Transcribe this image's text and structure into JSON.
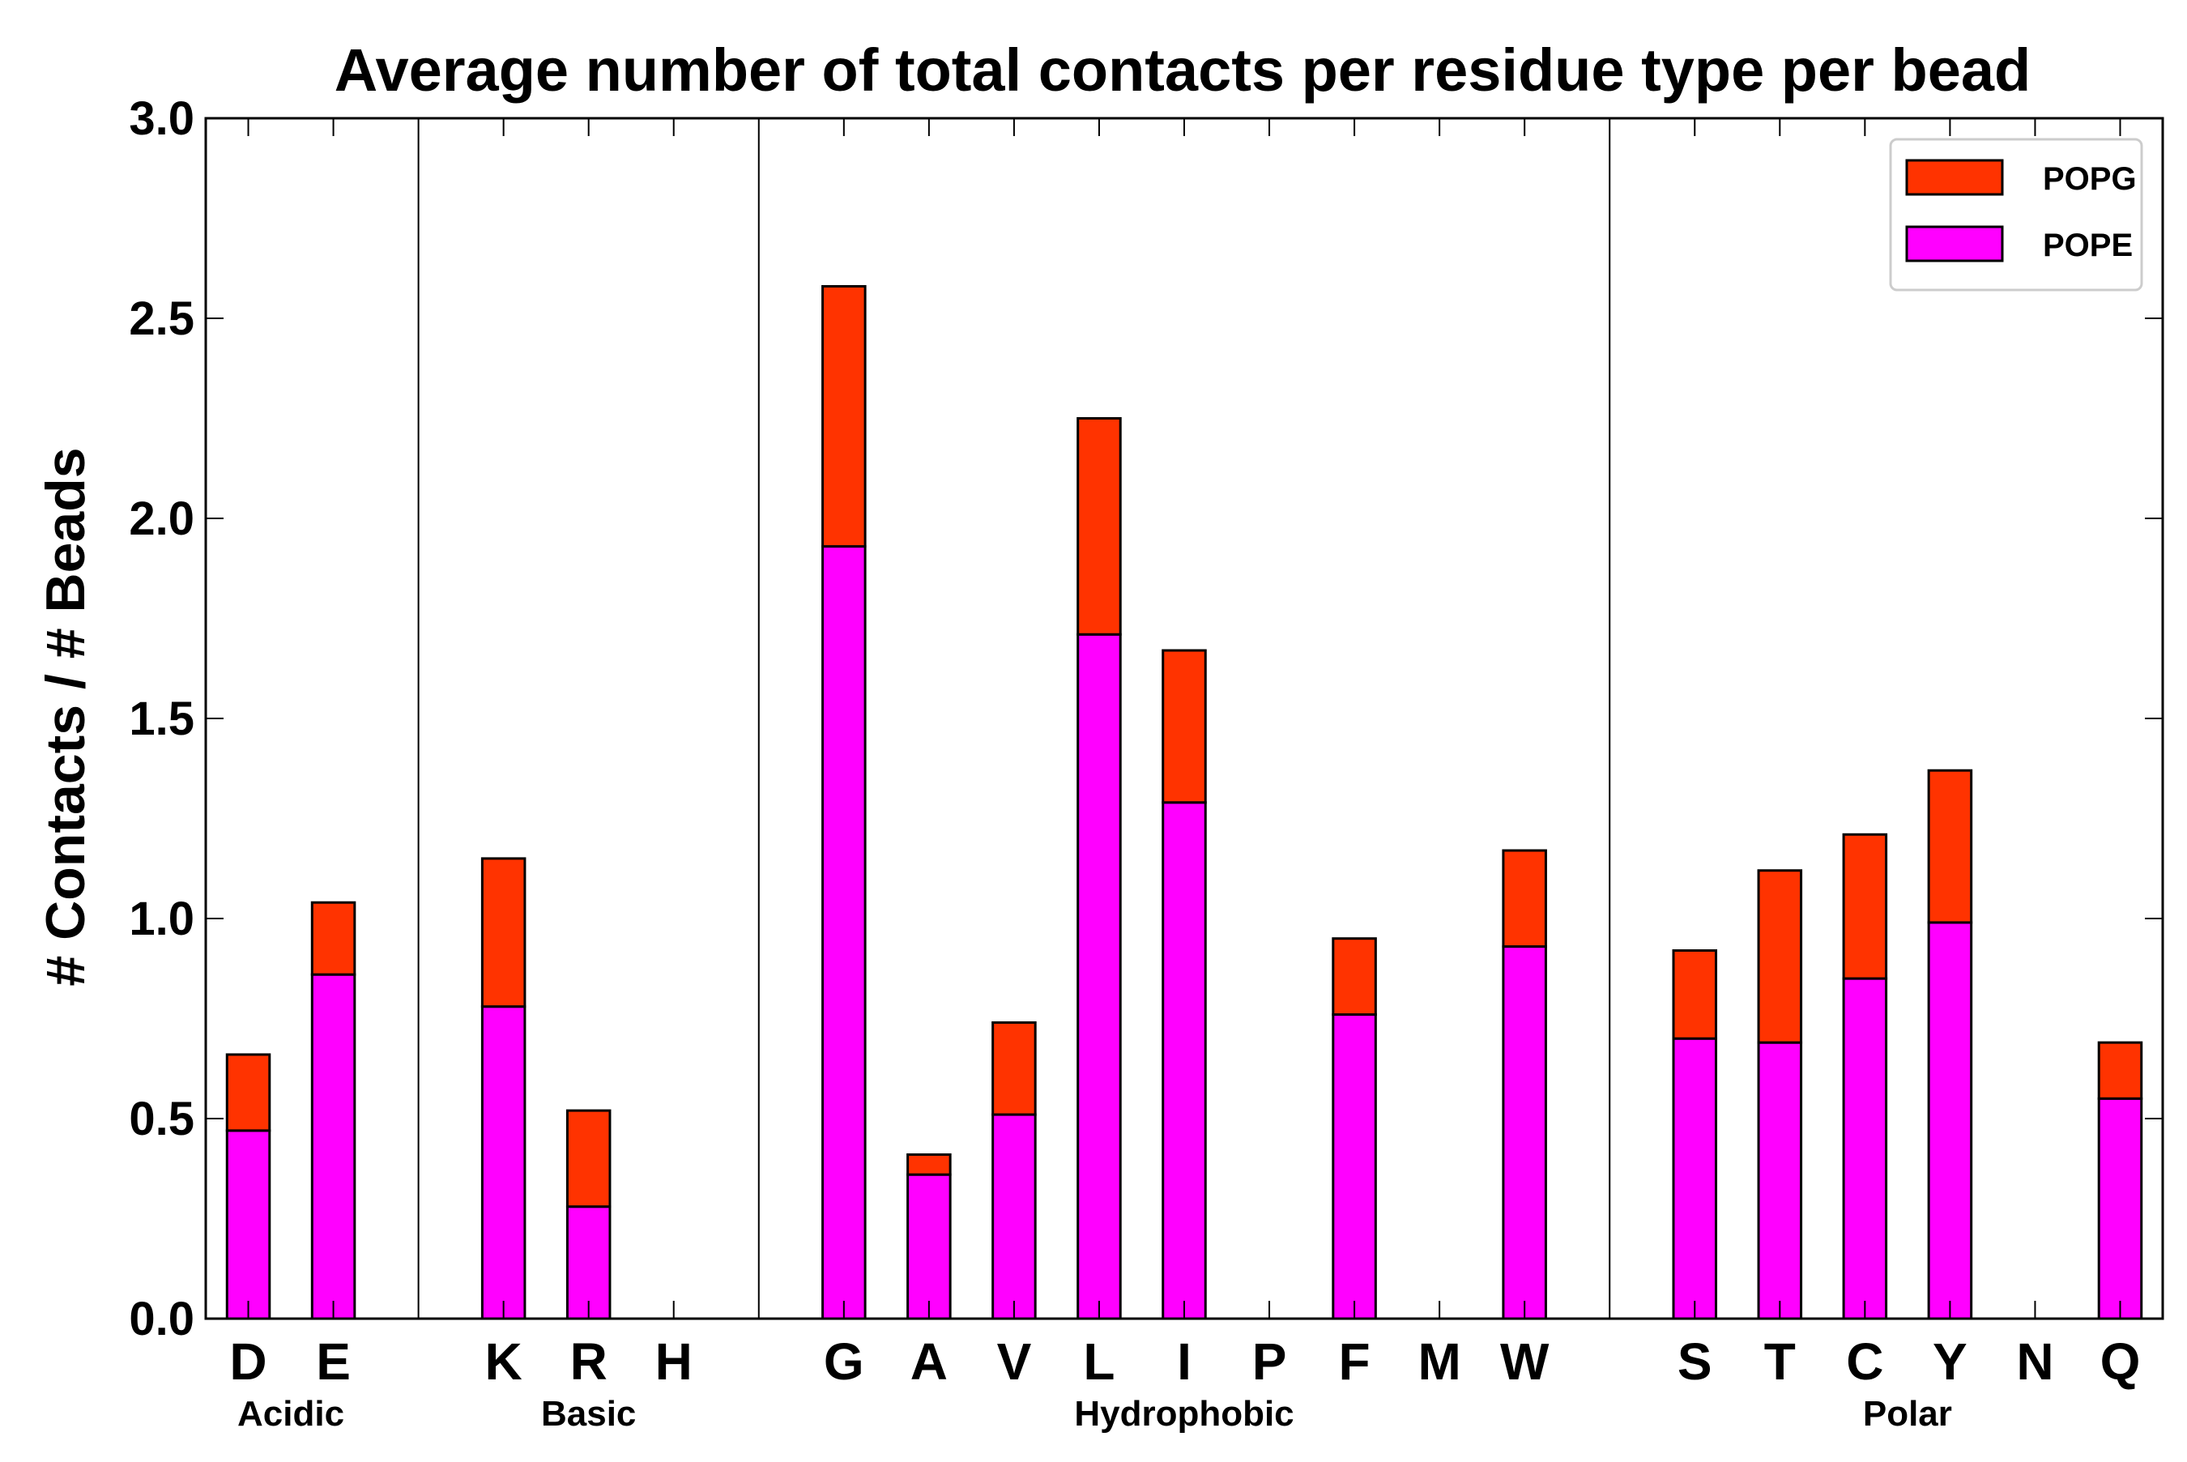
{
  "chart_data": {
    "type": "bar",
    "stacked": true,
    "title": "Average number of total contacts per residue type per bead",
    "xlabel": "",
    "ylabel": "# Contacts / # Beads",
    "ylim": [
      0,
      3.0
    ],
    "yticks": [
      "0.0",
      "0.5",
      "1.0",
      "1.5",
      "2.0",
      "2.5",
      "3.0"
    ],
    "ytick_values": [
      0,
      0.5,
      1.0,
      1.5,
      2.0,
      2.5,
      3.0
    ],
    "legend_position": "top-right",
    "colors": {
      "POPE": "#ff00ff",
      "POPG": "#ff3300",
      "edge": "#000000"
    },
    "slots": [
      "D",
      "E",
      "",
      "K",
      "R",
      "H",
      "",
      "G",
      "A",
      "V",
      "L",
      "I",
      "P",
      "F",
      "M",
      "W",
      "",
      "S",
      "T",
      "C",
      "Y",
      "N",
      "Q"
    ],
    "categories": [
      "D",
      "E",
      "K",
      "R",
      "H",
      "G",
      "A",
      "V",
      "L",
      "I",
      "P",
      "F",
      "M",
      "W",
      "S",
      "T",
      "C",
      "Y",
      "N",
      "Q"
    ],
    "series": [
      {
        "name": "POPE",
        "values": [
          0.47,
          0.86,
          0.78,
          0.28,
          0.0,
          1.93,
          0.36,
          0.51,
          1.71,
          1.29,
          0.0,
          0.76,
          0.0,
          0.93,
          0.7,
          0.69,
          0.85,
          0.99,
          0.0,
          0.55
        ]
      },
      {
        "name": "POPG",
        "values": [
          0.19,
          0.18,
          0.37,
          0.24,
          0.0,
          0.65,
          0.05,
          0.23,
          0.54,
          0.38,
          0.0,
          0.19,
          0.0,
          0.24,
          0.22,
          0.43,
          0.36,
          0.38,
          0.0,
          0.14
        ]
      }
    ],
    "legend": [
      {
        "name": "POPG",
        "color": "#ff3300"
      },
      {
        "name": "POPE",
        "color": "#ff00ff"
      }
    ],
    "groups": [
      {
        "label": "Acidic",
        "members": [
          "D",
          "E"
        ]
      },
      {
        "label": "Basic",
        "members": [
          "K",
          "R",
          "H"
        ]
      },
      {
        "label": "Hydrophobic",
        "members": [
          "G",
          "A",
          "V",
          "L",
          "I",
          "P",
          "F",
          "M",
          "W"
        ]
      },
      {
        "label": "Polar",
        "members": [
          "S",
          "T",
          "C",
          "Y",
          "N",
          "Q"
        ]
      }
    ],
    "separators_after": [
      "E",
      "H",
      "W"
    ]
  }
}
